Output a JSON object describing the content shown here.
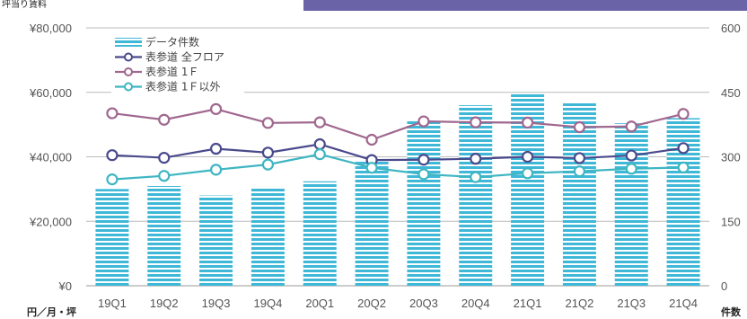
{
  "header": {
    "partial_text": "坪当り賃料"
  },
  "chart_data": {
    "type": "bar",
    "categories": [
      "19Q1",
      "19Q2",
      "19Q3",
      "19Q4",
      "20Q1",
      "20Q2",
      "20Q3",
      "20Q4",
      "21Q1",
      "21Q2",
      "21Q3",
      "21Q4"
    ],
    "left_axis": {
      "ticks": [
        "¥0",
        "¥20,000",
        "¥40,000",
        "¥60,000",
        "¥80,000"
      ],
      "ylim": [
        0,
        80000
      ],
      "unit_label": "円／月・坪"
    },
    "right_axis": {
      "ticks": [
        "0",
        "150",
        "300",
        "450",
        "600"
      ],
      "ylim": [
        0,
        600
      ],
      "unit_label": "件数"
    },
    "grid": true,
    "legend_position": "top-left",
    "series": [
      {
        "name": "データ件数",
        "type": "bar",
        "axis": "right",
        "color": "#3fb8d8",
        "values": [
          225,
          232,
          210,
          230,
          243,
          290,
          385,
          420,
          447,
          427,
          378,
          390
        ]
      },
      {
        "name": "表参道 全フロア",
        "type": "line",
        "axis": "left",
        "color": "#4a4a8c",
        "values": [
          40500,
          39700,
          42500,
          41300,
          43900,
          39000,
          39100,
          39400,
          40000,
          39600,
          40400,
          42700
        ]
      },
      {
        "name": "表参道 1Ｆ",
        "type": "line",
        "axis": "left",
        "color": "#a0678f",
        "values": [
          53500,
          51500,
          54800,
          50500,
          50700,
          45300,
          51000,
          50700,
          50600,
          49200,
          49400,
          53300
        ]
      },
      {
        "name": "表参道 1Ｆ以外",
        "type": "line",
        "axis": "left",
        "color": "#3eb6c2",
        "values": [
          33000,
          34100,
          36000,
          37600,
          40800,
          36600,
          34600,
          33700,
          34900,
          35500,
          36300,
          36700
        ]
      }
    ]
  }
}
